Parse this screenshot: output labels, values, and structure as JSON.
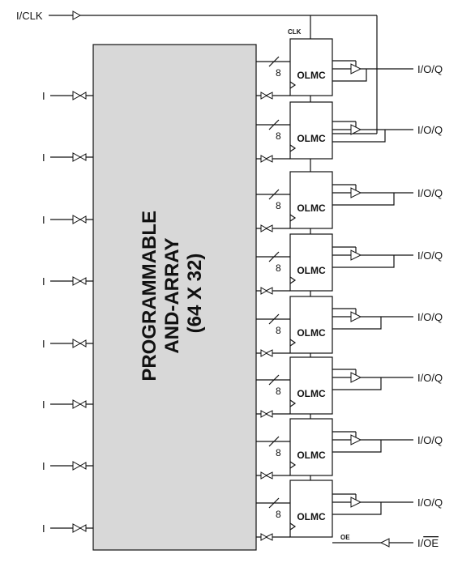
{
  "clock_input": {
    "label": "I/CLK"
  },
  "clk_label": "CLK",
  "oe_label": "OE",
  "oe_input": {
    "label_main": "I/",
    "label_over": "OE"
  },
  "array": {
    "lines": [
      "PROGRAMMABLE",
      "AND-ARRAY",
      "(64 X 32)"
    ]
  },
  "inputs": [
    "I",
    "I",
    "I",
    "I",
    "I",
    "I",
    "I",
    "I"
  ],
  "olmcs": [
    {
      "label": "OLMC",
      "bus_width": "8",
      "io": "I/O/Q"
    },
    {
      "label": "OLMC",
      "bus_width": "8",
      "io": "I/O/Q"
    },
    {
      "label": "OLMC",
      "bus_width": "8",
      "io": "I/O/Q"
    },
    {
      "label": "OLMC",
      "bus_width": "8",
      "io": "I/O/Q"
    },
    {
      "label": "OLMC",
      "bus_width": "8",
      "io": "I/O/Q"
    },
    {
      "label": "OLMC",
      "bus_width": "8",
      "io": "I/O/Q"
    },
    {
      "label": "OLMC",
      "bus_width": "8",
      "io": "I/O/Q"
    },
    {
      "label": "OLMC",
      "bus_width": "8",
      "io": "I/O/Q"
    }
  ]
}
